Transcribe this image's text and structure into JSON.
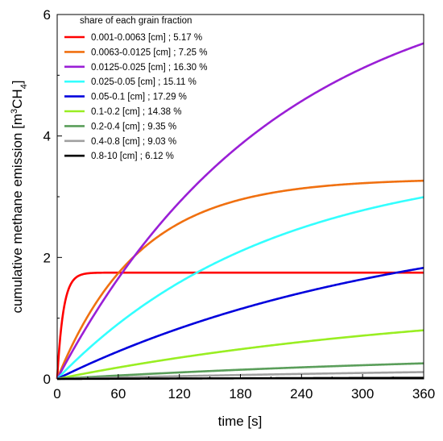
{
  "chart_data": {
    "type": "line",
    "xlabel": "time [s]",
    "ylabel_prefix": "cumulative methane emission [m",
    "ylabel_sup": "3",
    "ylabel_mid": "CH",
    "ylabel_sub": "4",
    "ylabel_suffix": "]",
    "xlim": [
      0,
      360
    ],
    "ylim": [
      0,
      6
    ],
    "xticks": [
      0,
      60,
      120,
      180,
      240,
      300,
      360
    ],
    "yticks": [
      0,
      2,
      4,
      6
    ],
    "grid": false,
    "legend": {
      "title": "share of each grain fraction",
      "placement": "top-left"
    },
    "series": [
      {
        "name": "0.001-0.0063 [cm] ; 5.17 %",
        "color": "#ff0000",
        "asymptote": 1.75,
        "tau": 6,
        "x": [
          0,
          5,
          10,
          15,
          20,
          30,
          45,
          60,
          120,
          180,
          240,
          300,
          360
        ],
        "y": [
          0,
          1.0,
          1.42,
          1.62,
          1.7,
          1.74,
          1.75,
          1.75,
          1.75,
          1.75,
          1.75,
          1.75,
          1.75
        ]
      },
      {
        "name": "0.0063-0.0125 [cm] ; 7.25 %",
        "color": "#f07010",
        "asymptote": 3.3,
        "tau": 80,
        "x": [
          0,
          30,
          60,
          90,
          120,
          180,
          240,
          300,
          360
        ],
        "y": [
          0,
          1.03,
          1.74,
          2.22,
          2.54,
          2.93,
          3.12,
          3.21,
          3.26
        ]
      },
      {
        "name": "0.0125-0.025 [cm] ; 16.30 %",
        "color": "#9a1fd6",
        "asymptote": 6.8,
        "tau": 215,
        "x": [
          0,
          30,
          60,
          90,
          120,
          180,
          240,
          300,
          360
        ],
        "y": [
          0,
          0.89,
          1.66,
          2.34,
          2.93,
          3.91,
          4.63,
          5.17,
          5.54
        ]
      },
      {
        "name": "0.025-0.05 [cm] ; 15.11 %",
        "color": "#33ffff",
        "asymptote": 3.65,
        "tau": 210,
        "x": [
          0,
          30,
          60,
          90,
          120,
          180,
          240,
          300,
          360
        ],
        "y": [
          0,
          0.49,
          0.91,
          1.27,
          1.59,
          2.1,
          2.48,
          2.77,
          2.99
        ]
      },
      {
        "name": "0.05-0.1 [cm] ; 17.29 %",
        "color": "#0000dd",
        "asymptote": 2.8,
        "tau": 340,
        "x": [
          0,
          30,
          60,
          90,
          120,
          180,
          240,
          300,
          360
        ],
        "y": [
          0,
          0.24,
          0.45,
          0.65,
          0.82,
          1.15,
          1.41,
          1.65,
          1.84
        ]
      },
      {
        "name": "0.1-0.2 [cm] ; 14.38 %",
        "color": "#99ee22",
        "asymptote": 1.35,
        "tau": 400,
        "x": [
          0,
          30,
          60,
          90,
          120,
          180,
          240,
          300,
          360
        ],
        "y": [
          0,
          0.1,
          0.19,
          0.28,
          0.35,
          0.49,
          0.61,
          0.71,
          0.8
        ]
      },
      {
        "name": "0.2-0.4 [cm] ; 9.35 %",
        "color": "#5a9e5a",
        "asymptote": 0.5,
        "tau": 500,
        "x": [
          0,
          60,
          120,
          180,
          240,
          300,
          360
        ],
        "y": [
          0,
          0.06,
          0.11,
          0.15,
          0.19,
          0.23,
          0.26
        ]
      },
      {
        "name": "0.4-0.8 [cm] ; 9.03 %",
        "color": "#a0a0a0",
        "asymptote": 0.25,
        "tau": 600,
        "x": [
          0,
          60,
          120,
          180,
          240,
          300,
          360
        ],
        "y": [
          0,
          0.025,
          0.05,
          0.07,
          0.09,
          0.1,
          0.11
        ]
      },
      {
        "name": "0.8-10 [cm] ; 6.12 %",
        "color": "#000000",
        "asymptote": 0.05,
        "tau": 800,
        "x": [
          0,
          60,
          120,
          180,
          240,
          300,
          360
        ],
        "y": [
          0,
          0.005,
          0.01,
          0.015,
          0.02,
          0.02,
          0.02
        ]
      }
    ]
  }
}
